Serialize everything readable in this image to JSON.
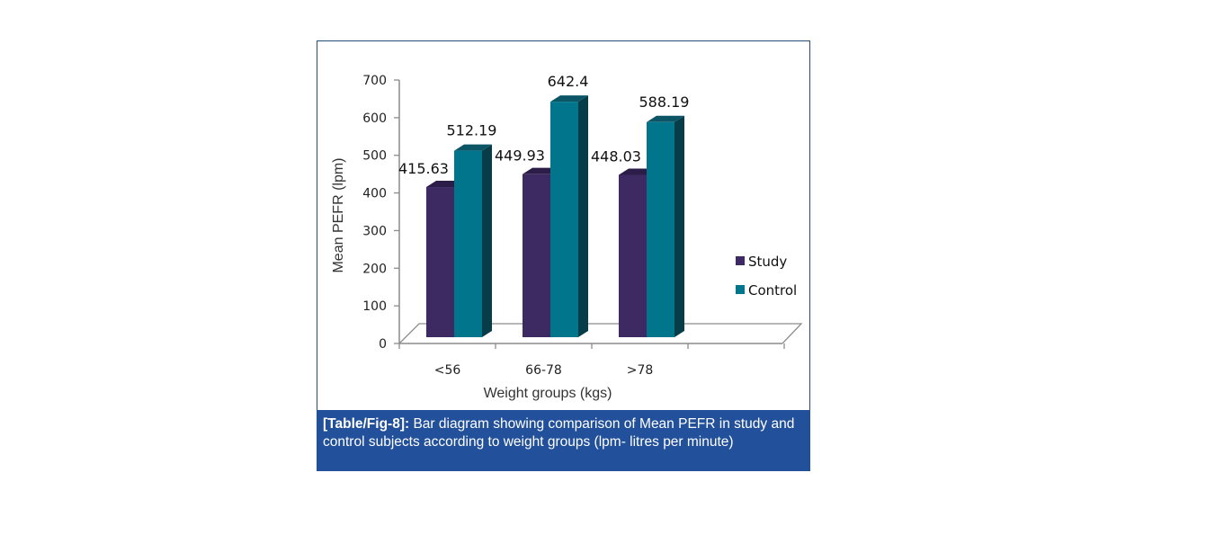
{
  "chart_data": {
    "type": "bar",
    "style": "3d-clustered-column",
    "categories": [
      "<56",
      "66-78",
      ">78"
    ],
    "series": [
      {
        "name": "Study",
        "values": [
          415.63,
          449.93,
          448.03
        ],
        "color": "#3e2a63",
        "top_color": "#2c1d48",
        "side_color": "#291a42"
      },
      {
        "name": "Control",
        "values": [
          512.19,
          642.4,
          588.19
        ],
        "color": "#00758c",
        "top_color": "#0b5566",
        "side_color": "#073d49"
      }
    ],
    "data_labels": [
      [
        "415.63",
        "449.93",
        "448.03"
      ],
      [
        "512.19",
        "642.4",
        "588.19"
      ]
    ],
    "title": "",
    "xlabel": "Weight groups (kgs)",
    "ylabel": "Mean PEFR (lpm)",
    "ylim": [
      0,
      700
    ],
    "yticks": [
      0,
      100,
      200,
      300,
      400,
      500,
      600,
      700
    ],
    "grid": false,
    "legend": "right"
  },
  "caption": {
    "label": "[Table/Fig-8]:",
    "text": " Bar diagram showing comparison of Mean PEFR in study and control subjects according to weight groups (lpm- litres per minute)"
  }
}
